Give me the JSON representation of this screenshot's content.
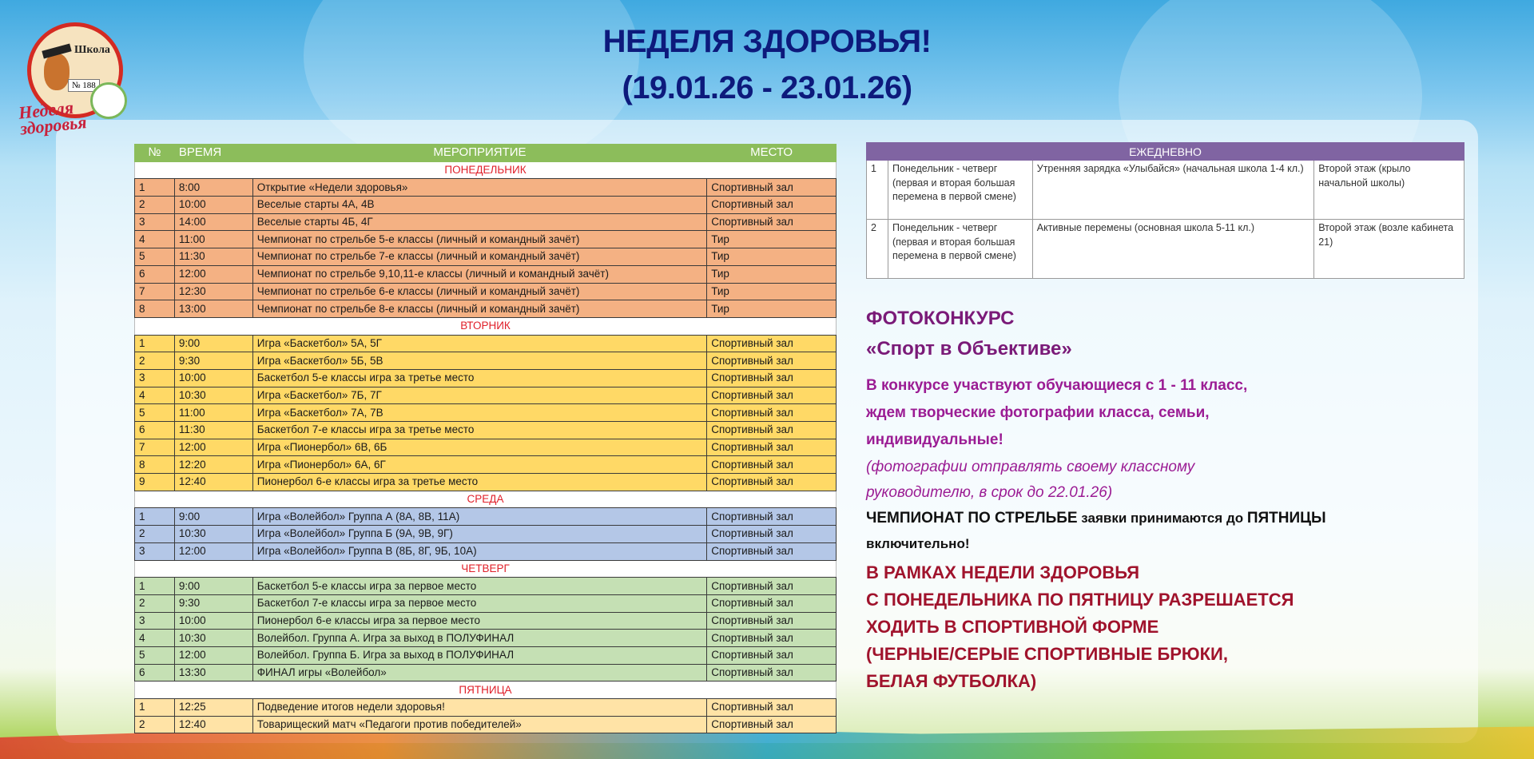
{
  "header": {
    "title_line1": "НЕДЕЛЯ ЗДОРОВЬЯ!",
    "title_line2": "(19.01.26 - 23.01.26)"
  },
  "logo": {
    "school_text": "Школа",
    "number_text": "№ 188",
    "caption": "Неделя здоровья"
  },
  "schedule": {
    "columns": [
      "№",
      "ВРЕМЯ",
      "МЕРОПРИЯТИЕ",
      "МЕСТО"
    ],
    "colors": {
      "header": "#8cbd5b",
      "monday": "#f4b183",
      "tuesday": "#ffd966",
      "wednesday": "#b4c7e7",
      "thursday": "#c5e0b4",
      "friday": "#ffe3a6",
      "day_label": "#e0202a"
    },
    "days": [
      {
        "key": "mon",
        "label": "ПОНЕДЕЛЬНИК",
        "rows": [
          [
            "1",
            "8:00",
            "Открытие «Недели здоровья»",
            "Спортивный зал"
          ],
          [
            "2",
            "10:00",
            "Веселые старты 4А, 4В",
            "Спортивный зал"
          ],
          [
            "3",
            "14:00",
            "Веселые старты 4Б, 4Г",
            "Спортивный зал"
          ],
          [
            "4",
            "11:00",
            "Чемпионат по стрельбе 5-е классы (личный и командный зачёт)",
            "Тир"
          ],
          [
            "5",
            "11:30",
            "Чемпионат по стрельбе 7-е классы (личный и командный зачёт)",
            "Тир"
          ],
          [
            "6",
            "12:00",
            "Чемпионат по стрельбе 9,10,11-е классы (личный и командный зачёт)",
            "Тир"
          ],
          [
            "7",
            "12:30",
            "Чемпионат по стрельбе 6-е классы (личный и командный зачёт)",
            "Тир"
          ],
          [
            "8",
            "13:00",
            "Чемпионат по стрельбе 8-е классы (личный и командный зачёт)",
            "Тир"
          ]
        ]
      },
      {
        "key": "tue",
        "label": "ВТОРНИК",
        "rows": [
          [
            "1",
            "9:00",
            "Игра «Баскетбол» 5А, 5Г",
            "Спортивный зал"
          ],
          [
            "2",
            "9:30",
            "Игра «Баскетбол» 5Б, 5В",
            "Спортивный зал"
          ],
          [
            "3",
            "10:00",
            "Баскетбол 5-е классы игра за третье место",
            "Спортивный зал"
          ],
          [
            "4",
            "10:30",
            "Игра «Баскетбол» 7Б, 7Г",
            "Спортивный зал"
          ],
          [
            "5",
            "11:00",
            "Игра «Баскетбол» 7А, 7В",
            "Спортивный зал"
          ],
          [
            "6",
            "11:30",
            "Баскетбол 7-е классы игра за третье место",
            "Спортивный зал"
          ],
          [
            "7",
            "12:00",
            "Игра «Пионербол» 6В, 6Б",
            "Спортивный зал"
          ],
          [
            "8",
            "12:20",
            "Игра «Пионербол» 6А, 6Г",
            "Спортивный зал"
          ],
          [
            "9",
            "12:40",
            "Пионербол 6-е классы игра за третье место",
            "Спортивный зал"
          ]
        ]
      },
      {
        "key": "wed",
        "label": "СРЕДА",
        "rows": [
          [
            "1",
            "9:00",
            "Игра «Волейбол» Группа А (8А, 8В, 11А)",
            "Спортивный зал"
          ],
          [
            "2",
            "10:30",
            "Игра «Волейбол» Группа Б (9А, 9В, 9Г)",
            "Спортивный зал"
          ],
          [
            "3",
            "12:00",
            "Игра «Волейбол» Группа В (8Б, 8Г, 9Б, 10А)",
            "Спортивный зал"
          ]
        ]
      },
      {
        "key": "thu",
        "label": "ЧЕТВЕРГ",
        "rows": [
          [
            "1",
            "9:00",
            "Баскетбол 5-е классы игра за первое место",
            "Спортивный зал"
          ],
          [
            "2",
            "9:30",
            "Баскетбол 7-е классы игра за первое место",
            "Спортивный зал"
          ],
          [
            "3",
            "10:00",
            "Пионербол 6-е классы игра за первое место",
            "Спортивный зал"
          ],
          [
            "4",
            "10:30",
            "Волейбол. Группа А. Игра за выход в ПОЛУФИНАЛ",
            "Спортивный зал"
          ],
          [
            "5",
            "12:00",
            "Волейбол. Группа Б. Игра за выход в ПОЛУФИНАЛ",
            "Спортивный зал"
          ],
          [
            "6",
            "13:30",
            "ФИНАЛ игры «Волейбол»",
            "Спортивный зал"
          ]
        ]
      },
      {
        "key": "fri",
        "label": "ПЯТНИЦА",
        "rows": [
          [
            "1",
            "12:25",
            "Подведение итогов недели здоровья!",
            "Спортивный зал"
          ],
          [
            "2",
            "12:40",
            "Товарищеский матч «Педагоги против победителей»",
            "Спортивный зал"
          ]
        ]
      }
    ]
  },
  "daily": {
    "title": "ЕЖЕДНЕВНО",
    "header_color": "#8064a2",
    "rows": [
      [
        "1",
        "Понедельник - четверг (первая и вторая большая перемена в первой смене)",
        "Утренняя зарядка «Улыбайся» (начальная школа 1-4 кл.)",
        "Второй этаж (крыло начальной школы)"
      ],
      [
        "2",
        "Понедельник - четверг (первая и вторая большая перемена в первой смене)",
        "Активные перемены (основная школа 5-11 кл.)",
        "Второй этаж (возле кабинета 21)"
      ]
    ]
  },
  "announcements": {
    "photo_title": "ФОТОКОНКУРС",
    "photo_name": "«Спорт в Объективе»",
    "photo_line1": "В конкурсе участвуют обучающиеся с 1 - 11 класс,",
    "photo_line2": "ждем творческие фотографии класса, семьи,",
    "photo_line3": "индивидуальные!",
    "photo_note1": "(фотографии отправлять своему классному",
    "photo_note2": "руководителю, в срок до 22.01.26)",
    "shooting_bold": "ЧЕМПИОНАТ ПО СТРЕЛЬБЕ",
    "shooting_rest": " заявки принимаются до ",
    "shooting_bold2": "ПЯТНИЦЫ",
    "shooting_line2": "включительно!",
    "uniform_lines": [
      "В РАМКАХ НЕДЕЛИ ЗДОРОВЬЯ",
      "С ПОНЕДЕЛЬНИКА ПО ПЯТНИЦУ РАЗРЕШАЕТСЯ",
      "ХОДИТЬ В СПОРТИВНОЙ ФОРМЕ",
      "(ЧЕРНЫЕ/СЕРЫЕ СПОРТИВНЫЕ БРЮКИ,",
      "БЕЛАЯ ФУТБОЛКА)"
    ]
  }
}
